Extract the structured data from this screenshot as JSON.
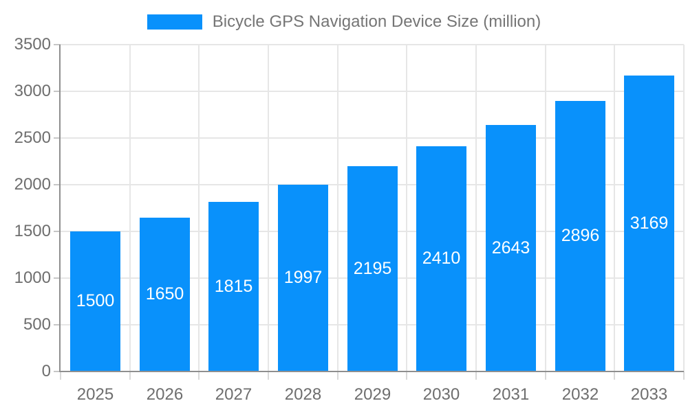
{
  "chart_data": {
    "type": "bar",
    "title": "Bicycle GPS Navigation Device Size (million)",
    "legend_position": "top",
    "categories": [
      "2025",
      "2026",
      "2027",
      "2028",
      "2029",
      "2030",
      "2031",
      "2032",
      "2033"
    ],
    "series": [
      {
        "name": "Bicycle GPS Navigation Device Size (million)",
        "values": [
          1500,
          1650,
          1815,
          1997,
          2195,
          2410,
          2643,
          2896,
          3169
        ]
      }
    ],
    "xlabel": "",
    "ylabel": "",
    "ylim": [
      0,
      3500
    ],
    "yticks": [
      0,
      500,
      1000,
      1500,
      2000,
      2500,
      3000,
      3500
    ],
    "grid": true,
    "bar_labels_visible": true,
    "bar_label_position": "inside-center"
  },
  "colors": {
    "bar": "#0991FB",
    "bar_label": "#FFFFFF",
    "grid": "#E6E6E6",
    "axis": "#8F8F8F",
    "tick": "#C6C6C6",
    "axis_label": "#6E6E6E",
    "legend_text": "#757575",
    "background": "#FFFFFF"
  }
}
